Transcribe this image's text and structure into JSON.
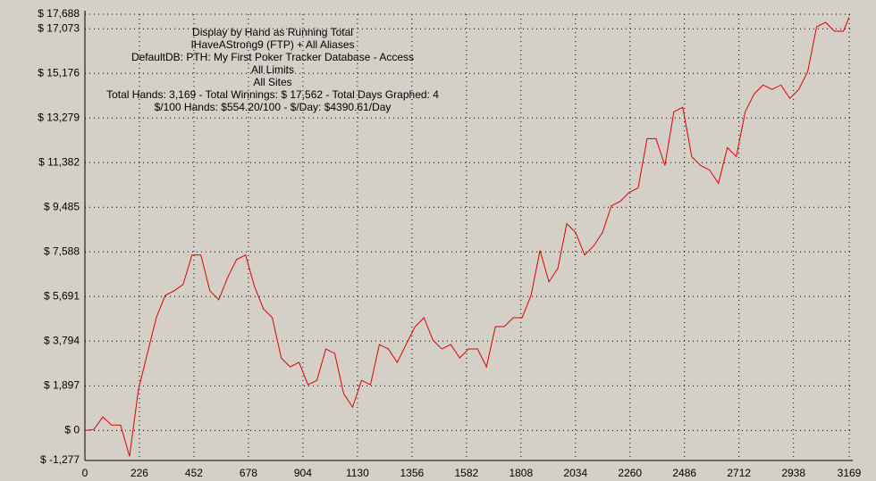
{
  "chart_data": {
    "type": "line",
    "title": [
      "Display by Hand as Running Total",
      "IHaveAStrong9 (FTP) + All Aliases",
      "DefaultDB: PTH: My First Poker Tracker Database - Access",
      "All Limits",
      "All Sites",
      "Total Hands: 3,169 - Total Winnings: $ 17,562 - Total Days Graphed: 4",
      "$/100 Hands: $554.20/100 - $/Day: $4390.61/Day"
    ],
    "x": [
      0,
      37,
      74,
      111,
      148,
      185,
      222,
      259,
      296,
      333,
      370,
      407,
      444,
      481,
      518,
      555,
      592,
      629,
      666,
      703,
      740,
      777,
      814,
      851,
      888,
      925,
      962,
      999,
      1036,
      1073,
      1110,
      1147,
      1184,
      1221,
      1258,
      1295,
      1332,
      1369,
      1406,
      1443,
      1480,
      1517,
      1554,
      1591,
      1628,
      1665,
      1702,
      1739,
      1776,
      1813,
      1850,
      1887,
      1924,
      1961,
      1998,
      2035,
      2072,
      2109,
      2146,
      2183,
      2220,
      2257,
      2294,
      2331,
      2368,
      2405,
      2442,
      2479,
      2516,
      2553,
      2590,
      2627,
      2664,
      2701,
      2738,
      2775,
      2812,
      2849,
      2886,
      2923,
      2960,
      2997,
      3034,
      3071,
      3108,
      3145,
      3169
    ],
    "series": [
      {
        "name": "Running Total",
        "color": "#dd0000",
        "values": [
          0,
          38,
          571,
          228,
          228,
          -1103,
          1750,
          3271,
          4793,
          5744,
          5934,
          6201,
          7456,
          7456,
          5934,
          5554,
          6505,
          7266,
          7456,
          6124,
          5173,
          4793,
          3081,
          2701,
          2891,
          1940,
          2130,
          3462,
          3271,
          1560,
          989,
          2130,
          1940,
          3652,
          3462,
          2891,
          3652,
          4413,
          4793,
          3842,
          3462,
          3652,
          3081,
          3462,
          3462,
          2701,
          4413,
          4413,
          4793,
          4793,
          5744,
          7646,
          6315,
          6885,
          8787,
          8407,
          7456,
          7836,
          8407,
          9548,
          9738,
          10119,
          10309,
          12401,
          12401,
          11260,
          13542,
          13732,
          11640,
          11260,
          11070,
          10499,
          12021,
          11640,
          13542,
          14303,
          14683,
          14493,
          14683,
          14113,
          14493,
          15254,
          17156,
          17346,
          16966,
          16966,
          17562
        ]
      }
    ],
    "xlim": [
      0,
      3169
    ],
    "xticks": [
      0,
      226,
      452,
      678,
      904,
      1130,
      1356,
      1582,
      1808,
      2034,
      2260,
      2486,
      2712,
      2938,
      3169
    ],
    "ylim": [
      -1277,
      17688
    ],
    "yticks": [
      {
        "value": -1277,
        "label": "$ -1,277"
      },
      {
        "value": 0,
        "label": "$ 0"
      },
      {
        "value": 1897,
        "label": "$ 1,897"
      },
      {
        "value": 3794,
        "label": "$ 3,794"
      },
      {
        "value": 5691,
        "label": "$ 5,691"
      },
      {
        "value": 7588,
        "label": "$ 7,588"
      },
      {
        "value": 9485,
        "label": "$ 9,485"
      },
      {
        "value": 11382,
        "label": "$ 11,382"
      },
      {
        "value": 13279,
        "label": "$ 13,279"
      },
      {
        "value": 15176,
        "label": "$ 15,176"
      },
      {
        "value": 17073,
        "label": "$ 17,073"
      },
      {
        "value": 17688,
        "label": "$ 17,688"
      }
    ],
    "grid": true
  }
}
